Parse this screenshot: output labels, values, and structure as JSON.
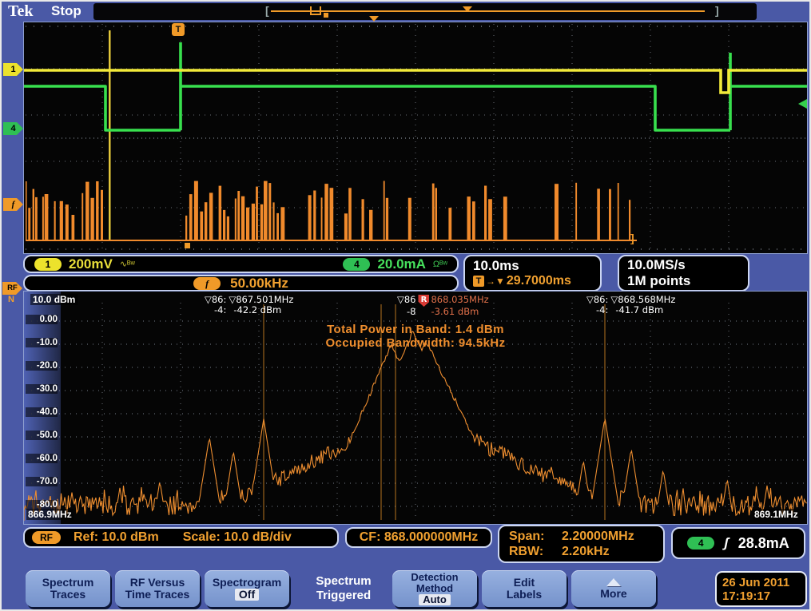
{
  "header": {
    "logo": "Tek",
    "status": "Stop"
  },
  "side_labels": {
    "ch1": "1",
    "ch4": "4",
    "freq": "f",
    "rf": "RF",
    "rf_sub": "N",
    "trigger_flag": "T"
  },
  "readouts": {
    "ch1": {
      "badge": "1",
      "value": "200mV",
      "icons": "∿ᴮʷ"
    },
    "ch4": {
      "badge": "4",
      "value": "20.0mA",
      "icons": "Ωᴮʷ"
    },
    "freq": {
      "badge": "f",
      "value": "50.00kHz"
    },
    "timebase": {
      "scale": "10.0ms",
      "trigger_icon": "T",
      "trigger_arrow": "→▼",
      "trigger_value": "29.7000ms"
    },
    "sampling": {
      "rate": "10.0MS/s",
      "record": "1M points"
    }
  },
  "spectrum": {
    "ref_level": "10.0 dBm",
    "y_ticks": [
      "0.00",
      "-10.0",
      "-20.0",
      "-30.0",
      "-40.0",
      "-50.0",
      "-60.0",
      "-70.0",
      "-80.0"
    ],
    "freq_start": "866.9MHz",
    "freq_stop": "869.1MHz",
    "annotation_power": "Total Power in Band: 1.4 dBm",
    "annotation_obw": "Occupied Bandwidth: 94.5kHz",
    "markers": {
      "left": {
        "t1": "▽86:",
        "freq": "▽867.501MHz",
        "t2": "-4:",
        "amp": "-42.2 dBm"
      },
      "center": {
        "t1": "▽86",
        "flag": "R",
        "freq": "868.035MHz",
        "t2": "-8",
        "amp": "-3.61 dBm"
      },
      "right": {
        "t1": "▽86:",
        "freq": "▽868.568MHz",
        "t2": "-4:",
        "amp": "-41.7 dBm"
      }
    }
  },
  "rf_bar": {
    "badge": "RF",
    "ref": "Ref: 10.0 dBm",
    "scale": "Scale: 10.0 dB/div",
    "cf": "CF: 868.000000MHz",
    "span_label": "Span:",
    "span_value": "2.20000MHz",
    "rbw_label": "RBW:",
    "rbw_value": "2.20kHz",
    "current_badge": "4",
    "current_icon": "ʃ",
    "current_value": "28.8mA"
  },
  "menu": {
    "spectrum_traces": {
      "l1": "Spectrum",
      "l2": "Traces"
    },
    "rf_vs_time": {
      "l1": "RF Versus",
      "l2": "Time Traces"
    },
    "spectrogram": {
      "l1": "Spectrogram",
      "l2": "Off"
    },
    "mode_label": {
      "l1": "Spectrum",
      "l2": "Triggered"
    },
    "detection": {
      "l1": "Detection",
      "l2": "Method",
      "l3": "Auto"
    },
    "edit_labels": {
      "l1": "Edit",
      "l2": "Labels"
    },
    "more": {
      "l1": "More"
    },
    "datetime": {
      "date": "26 Jun 2011",
      "time": "17:19:17"
    }
  }
}
